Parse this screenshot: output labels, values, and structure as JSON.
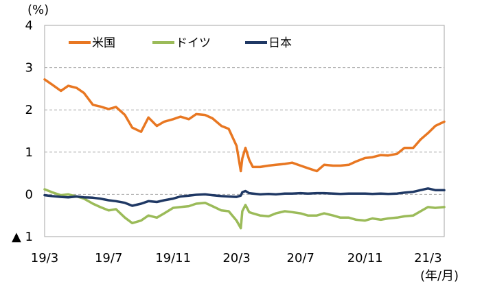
{
  "chart_data": {
    "type": "line",
    "title": "",
    "yunit_label": "(%)",
    "xunit_label": "(年/月)",
    "ylim": [
      -1,
      4
    ],
    "yticks": [
      {
        "value": 4,
        "label": "4"
      },
      {
        "value": 3,
        "label": "3"
      },
      {
        "value": 2,
        "label": "2"
      },
      {
        "value": 1,
        "label": "1"
      },
      {
        "value": 0,
        "label": "0"
      },
      {
        "value": -1,
        "label": "▲ 1"
      }
    ],
    "xlim": [
      "2019-03-01",
      "2021-04-01"
    ],
    "xticks": [
      {
        "date": "2019-03-01",
        "label": "19/3"
      },
      {
        "date": "2019-07-01",
        "label": "19/7"
      },
      {
        "date": "2019-11-01",
        "label": "19/11"
      },
      {
        "date": "2020-03-01",
        "label": "20/3"
      },
      {
        "date": "2020-07-01",
        "label": "20/7"
      },
      {
        "date": "2020-11-01",
        "label": "20/11"
      },
      {
        "date": "2021-03-01",
        "label": "21/3"
      }
    ],
    "grid": true,
    "legend_position": "top-left",
    "x": [
      "2019-03-01",
      "2019-03-15",
      "2019-04-01",
      "2019-04-15",
      "2019-05-01",
      "2019-05-15",
      "2019-06-01",
      "2019-06-15",
      "2019-07-01",
      "2019-07-15",
      "2019-08-01",
      "2019-08-15",
      "2019-09-01",
      "2019-09-15",
      "2019-10-01",
      "2019-10-15",
      "2019-11-01",
      "2019-11-15",
      "2019-12-01",
      "2019-12-15",
      "2020-01-01",
      "2020-01-15",
      "2020-02-01",
      "2020-02-15",
      "2020-03-01",
      "2020-03-09",
      "2020-03-12",
      "2020-03-18",
      "2020-03-25",
      "2020-04-01",
      "2020-04-15",
      "2020-05-01",
      "2020-05-15",
      "2020-06-01",
      "2020-06-15",
      "2020-07-01",
      "2020-07-15",
      "2020-08-01",
      "2020-08-15",
      "2020-09-01",
      "2020-09-15",
      "2020-10-01",
      "2020-10-15",
      "2020-11-01",
      "2020-11-15",
      "2020-12-01",
      "2020-12-15",
      "2021-01-01",
      "2021-01-15",
      "2021-02-01",
      "2021-02-15",
      "2021-03-01",
      "2021-03-15",
      "2021-04-01"
    ],
    "series": [
      {
        "name": "米国",
        "color": "#e87722",
        "values": [
          2.72,
          2.6,
          2.45,
          2.57,
          2.52,
          2.4,
          2.12,
          2.08,
          2.02,
          2.07,
          1.88,
          1.58,
          1.48,
          1.82,
          1.62,
          1.72,
          1.78,
          1.84,
          1.78,
          1.9,
          1.88,
          1.8,
          1.62,
          1.55,
          1.15,
          0.55,
          0.85,
          1.1,
          0.82,
          0.65,
          0.65,
          0.68,
          0.7,
          0.72,
          0.75,
          0.68,
          0.62,
          0.55,
          0.7,
          0.68,
          0.68,
          0.7,
          0.78,
          0.86,
          0.88,
          0.93,
          0.92,
          0.96,
          1.1,
          1.1,
          1.3,
          1.45,
          1.62,
          1.72
        ]
      },
      {
        "name": "ドイツ",
        "color": "#9bbb59",
        "values": [
          0.12,
          0.05,
          -0.02,
          0.0,
          -0.05,
          -0.1,
          -0.22,
          -0.3,
          -0.38,
          -0.35,
          -0.55,
          -0.68,
          -0.62,
          -0.5,
          -0.55,
          -0.45,
          -0.32,
          -0.3,
          -0.28,
          -0.22,
          -0.2,
          -0.28,
          -0.38,
          -0.4,
          -0.62,
          -0.8,
          -0.4,
          -0.25,
          -0.42,
          -0.45,
          -0.5,
          -0.52,
          -0.45,
          -0.4,
          -0.42,
          -0.45,
          -0.5,
          -0.5,
          -0.45,
          -0.5,
          -0.55,
          -0.55,
          -0.6,
          -0.62,
          -0.57,
          -0.6,
          -0.57,
          -0.55,
          -0.52,
          -0.5,
          -0.4,
          -0.3,
          -0.32,
          -0.3
        ]
      },
      {
        "name": "日本",
        "color": "#1f3864",
        "values": [
          -0.02,
          -0.04,
          -0.06,
          -0.07,
          -0.05,
          -0.07,
          -0.08,
          -0.1,
          -0.14,
          -0.16,
          -0.2,
          -0.27,
          -0.22,
          -0.16,
          -0.18,
          -0.14,
          -0.1,
          -0.05,
          -0.03,
          -0.01,
          0.0,
          -0.02,
          -0.04,
          -0.05,
          -0.06,
          -0.03,
          0.05,
          0.08,
          0.03,
          0.02,
          0.0,
          0.01,
          0.0,
          0.02,
          0.02,
          0.03,
          0.02,
          0.03,
          0.03,
          0.02,
          0.01,
          0.02,
          0.02,
          0.02,
          0.01,
          0.02,
          0.01,
          0.02,
          0.04,
          0.06,
          0.1,
          0.14,
          0.1,
          0.1
        ]
      }
    ]
  }
}
